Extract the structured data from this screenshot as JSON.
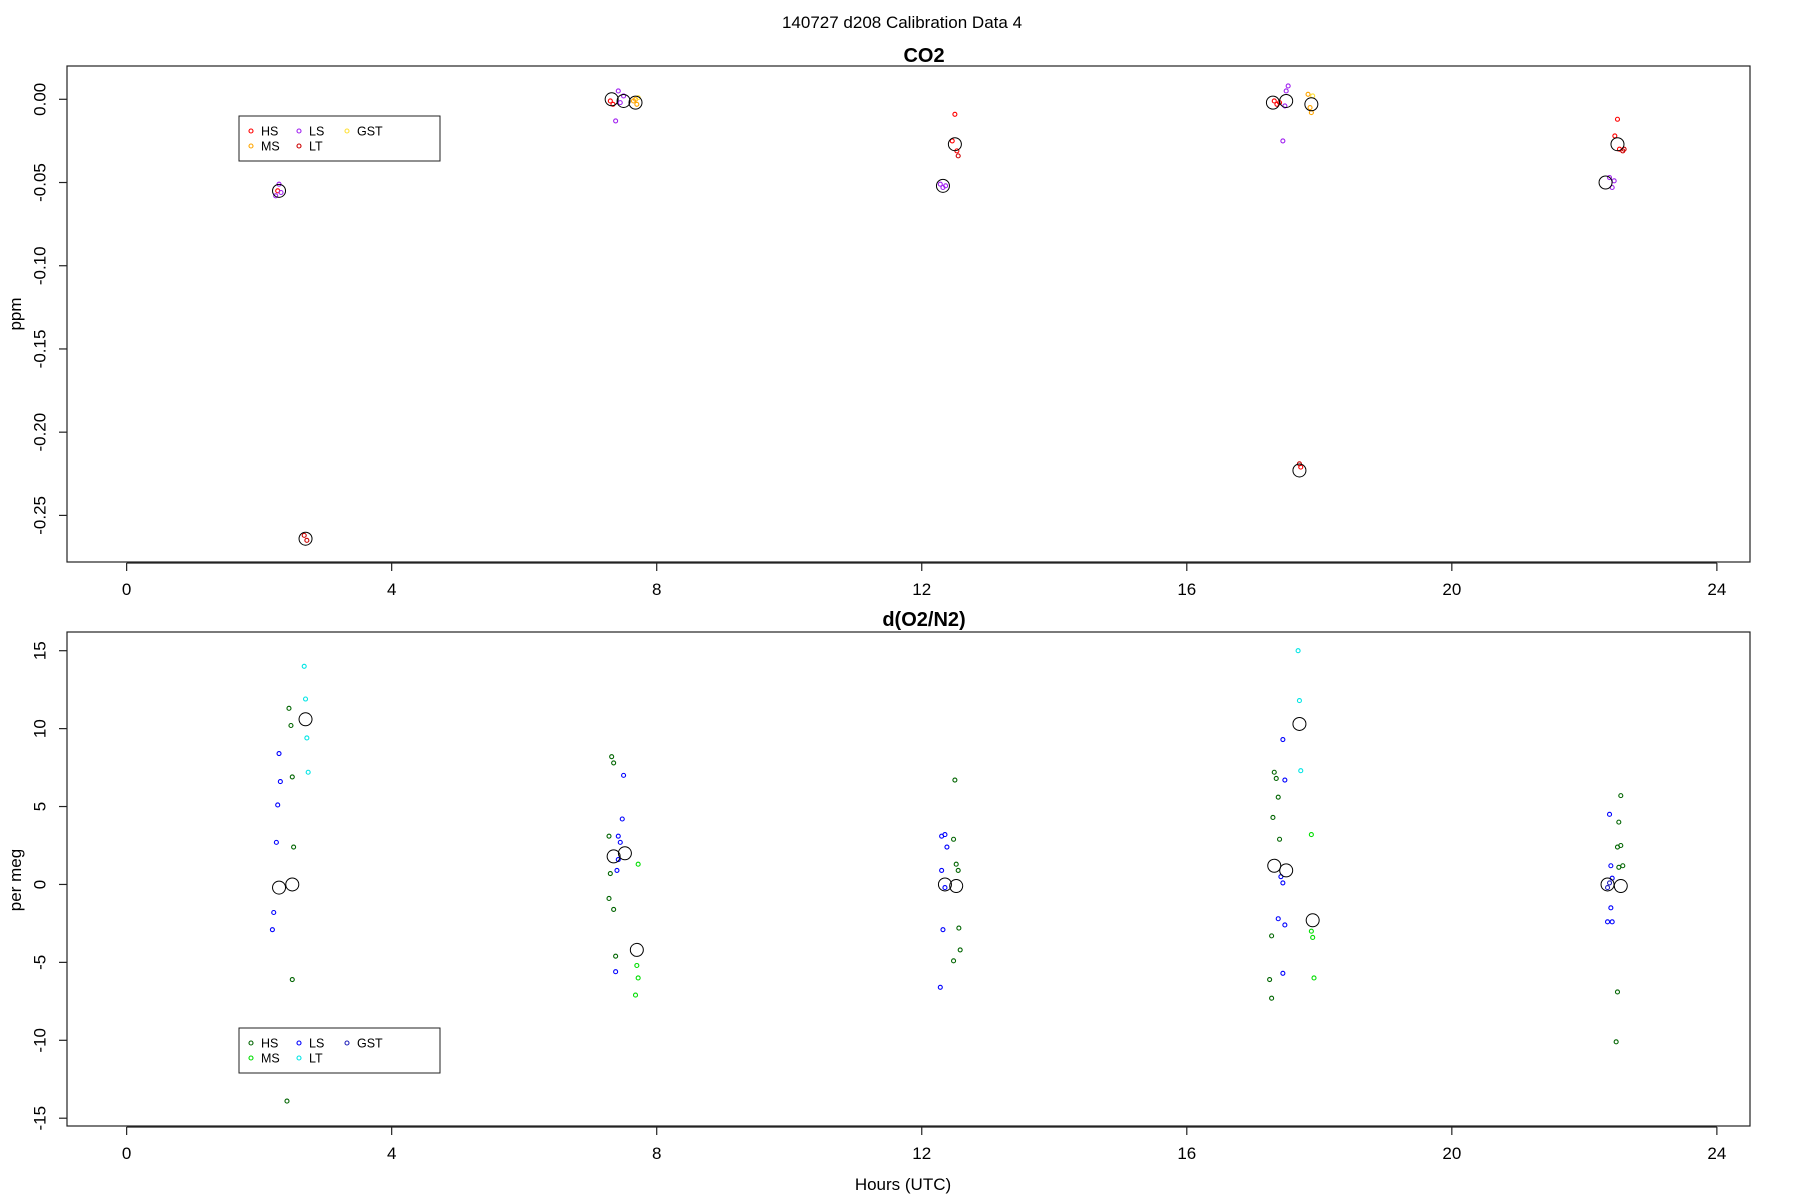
{
  "figure_title": "140727   d208   Calibration Data 4",
  "chart_data": [
    {
      "type": "scatter",
      "title": "CO2",
      "xlabel": "",
      "ylabel": "ppm",
      "xlim": [
        -0.9,
        24.5
      ],
      "ylim": [
        -0.278,
        0.02
      ],
      "x_ticks": [
        0,
        4,
        8,
        12,
        16,
        20,
        24
      ],
      "x_tick_labels": [
        "0",
        "4",
        "8",
        "12",
        "16",
        "20",
        "24"
      ],
      "y_ticks": [
        0.0,
        -0.05,
        -0.1,
        -0.15,
        -0.2,
        -0.25
      ],
      "y_tick_labels": [
        "0.00",
        "-0.05",
        "-0.10",
        "-0.15",
        "-0.20",
        "-0.25"
      ],
      "grid": false,
      "legend": {
        "placement": "top-left",
        "entries": [
          {
            "name": "HS",
            "color": "#ff0000"
          },
          {
            "name": "MS",
            "color": "#ffa500"
          },
          {
            "name": "LS",
            "color": "#a020f0"
          },
          {
            "name": "LT",
            "color": "#cc0000"
          },
          {
            "name": "GST",
            "color": "#ffe135"
          }
        ]
      },
      "series": [
        {
          "name": "HS",
          "color": "#ff0000",
          "points": [
            [
              2.28,
              -0.055
            ],
            [
              7.3,
              -0.001
            ],
            [
              7.34,
              -0.003
            ],
            [
              12.46,
              -0.025
            ],
            [
              12.5,
              -0.009
            ],
            [
              12.53,
              -0.031
            ],
            [
              17.32,
              -0.001
            ],
            [
              17.36,
              -0.003
            ],
            [
              17.4,
              -0.002
            ],
            [
              17.72,
              -0.221
            ],
            [
              22.46,
              -0.022
            ],
            [
              22.5,
              -0.012
            ],
            [
              22.53,
              -0.03
            ]
          ]
        },
        {
          "name": "MS",
          "color": "#ffa500",
          "points": [
            [
              7.65,
              -0.001
            ],
            [
              7.7,
              -0.003
            ],
            [
              7.68,
              0.0
            ],
            [
              17.83,
              0.003
            ],
            [
              17.86,
              -0.005
            ],
            [
              17.88,
              -0.008
            ]
          ]
        },
        {
          "name": "LS",
          "color": "#a020f0",
          "points": [
            [
              2.25,
              -0.058
            ],
            [
              2.3,
              -0.051
            ],
            [
              2.33,
              -0.056
            ],
            [
              7.42,
              0.005
            ],
            [
              7.45,
              -0.002
            ],
            [
              7.38,
              -0.013
            ],
            [
              7.5,
              0.002
            ],
            [
              12.28,
              -0.051
            ],
            [
              12.32,
              -0.053
            ],
            [
              12.36,
              -0.052
            ],
            [
              17.45,
              -0.025
            ],
            [
              17.5,
              0.005
            ],
            [
              17.53,
              0.008
            ],
            [
              17.48,
              -0.004
            ],
            [
              22.38,
              -0.047
            ],
            [
              22.42,
              -0.053
            ],
            [
              22.45,
              -0.049
            ]
          ]
        },
        {
          "name": "LT",
          "color": "#cc0000",
          "points": [
            [
              2.68,
              -0.262
            ],
            [
              2.72,
              -0.265
            ],
            [
              12.55,
              -0.034
            ],
            [
              17.7,
              -0.219
            ],
            [
              22.58,
              -0.031
            ],
            [
              22.6,
              -0.03
            ]
          ]
        },
        {
          "name": "GST",
          "color": "#ffe135",
          "points": [
            [
              7.72,
              0.001
            ],
            [
              17.9,
              0.002
            ]
          ]
        },
        {
          "name": "",
          "color": "#000000",
          "marker": "large-circle",
          "points": [
            [
              2.3,
              -0.055
            ],
            [
              2.7,
              -0.264
            ],
            [
              7.32,
              0.0
            ],
            [
              7.5,
              -0.001
            ],
            [
              7.68,
              -0.002
            ],
            [
              12.32,
              -0.052
            ],
            [
              12.5,
              -0.027
            ],
            [
              17.3,
              -0.002
            ],
            [
              17.5,
              -0.001
            ],
            [
              17.7,
              -0.223
            ],
            [
              17.88,
              -0.003
            ],
            [
              22.32,
              -0.05
            ],
            [
              22.5,
              -0.027
            ]
          ]
        }
      ]
    },
    {
      "type": "scatter",
      "title": "d(O2/N2)",
      "xlabel": "Hours (UTC)",
      "ylabel": "per meg",
      "xlim": [
        -0.9,
        24.5
      ],
      "ylim": [
        -15.5,
        16.2
      ],
      "x_ticks": [
        0,
        4,
        8,
        12,
        16,
        20,
        24
      ],
      "x_tick_labels": [
        "0",
        "4",
        "8",
        "12",
        "16",
        "20",
        "24"
      ],
      "y_ticks": [
        15,
        10,
        5,
        0,
        -5,
        -10,
        -15
      ],
      "y_tick_labels": [
        "15",
        "10",
        "5",
        "0",
        "-5",
        "-10",
        "-15"
      ],
      "grid": false,
      "legend": {
        "placement": "bottom-left",
        "entries": [
          {
            "name": "HS",
            "color": "#006400"
          },
          {
            "name": "MS",
            "color": "#00dd00"
          },
          {
            "name": "LS",
            "color": "#0000ff"
          },
          {
            "name": "LT",
            "color": "#00e5e5"
          },
          {
            "name": "GST",
            "color": "#2222bb"
          }
        ]
      },
      "series": [
        {
          "name": "HS",
          "color": "#006400",
          "points": [
            [
              2.45,
              11.3
            ],
            [
              2.48,
              10.2
            ],
            [
              2.5,
              6.9
            ],
            [
              2.52,
              2.4
            ],
            [
              2.5,
              -6.1
            ],
            [
              2.42,
              -13.9
            ],
            [
              7.32,
              8.2
            ],
            [
              7.35,
              7.8
            ],
            [
              7.28,
              3.1
            ],
            [
              7.3,
              0.7
            ],
            [
              7.28,
              -0.9
            ],
            [
              7.35,
              -1.6
            ],
            [
              7.38,
              -4.6
            ],
            [
              12.5,
              6.7
            ],
            [
              12.48,
              2.9
            ],
            [
              12.52,
              1.3
            ],
            [
              12.55,
              0.9
            ],
            [
              12.56,
              -2.8
            ],
            [
              12.58,
              -4.2
            ],
            [
              12.48,
              -4.9
            ],
            [
              17.32,
              7.2
            ],
            [
              17.35,
              6.8
            ],
            [
              17.38,
              5.6
            ],
            [
              17.3,
              4.3
            ],
            [
              17.4,
              2.9
            ],
            [
              17.28,
              -3.3
            ],
            [
              17.25,
              -6.1
            ],
            [
              17.28,
              -7.3
            ],
            [
              22.55,
              5.7
            ],
            [
              22.52,
              4.0
            ],
            [
              22.55,
              2.5
            ],
            [
              22.5,
              2.4
            ],
            [
              22.58,
              1.2
            ],
            [
              22.52,
              1.1
            ],
            [
              22.5,
              -6.9
            ],
            [
              22.48,
              -10.1
            ]
          ]
        },
        {
          "name": "MS",
          "color": "#00dd00",
          "points": [
            [
              7.72,
              1.3
            ],
            [
              7.7,
              -5.2
            ],
            [
              7.72,
              -6.0
            ],
            [
              7.68,
              -7.1
            ],
            [
              17.88,
              3.2
            ],
            [
              17.9,
              -3.4
            ],
            [
              17.88,
              -3.0
            ],
            [
              17.92,
              -6.0
            ]
          ]
        },
        {
          "name": "LS",
          "color": "#0000ff",
          "points": [
            [
              2.3,
              8.4
            ],
            [
              2.32,
              6.6
            ],
            [
              2.28,
              5.1
            ],
            [
              2.26,
              2.7
            ],
            [
              2.22,
              -1.8
            ],
            [
              2.2,
              -2.9
            ],
            [
              7.5,
              7.0
            ],
            [
              7.48,
              4.2
            ],
            [
              7.45,
              2.7
            ],
            [
              7.42,
              3.1
            ],
            [
              7.4,
              0.9
            ],
            [
              7.42,
              1.6
            ],
            [
              7.38,
              -5.6
            ],
            [
              12.3,
              3.1
            ],
            [
              12.35,
              3.2
            ],
            [
              12.38,
              2.4
            ],
            [
              12.3,
              0.9
            ],
            [
              12.35,
              -0.2
            ],
            [
              12.32,
              -2.9
            ],
            [
              12.28,
              -6.6
            ],
            [
              17.45,
              9.3
            ],
            [
              17.48,
              6.7
            ],
            [
              17.42,
              0.5
            ],
            [
              17.45,
              0.1
            ],
            [
              17.38,
              -2.2
            ],
            [
              17.48,
              -2.6
            ],
            [
              17.45,
              -5.7
            ],
            [
              22.38,
              4.5
            ],
            [
              22.4,
              1.2
            ],
            [
              22.42,
              0.4
            ],
            [
              22.4,
              -1.5
            ],
            [
              22.35,
              -2.4
            ],
            [
              22.42,
              -2.4
            ]
          ]
        },
        {
          "name": "LT",
          "color": "#00e5e5",
          "points": [
            [
              2.68,
              14.0
            ],
            [
              2.7,
              11.9
            ],
            [
              2.72,
              9.4
            ],
            [
              2.74,
              7.2
            ],
            [
              17.68,
              15.0
            ],
            [
              17.7,
              11.8
            ],
            [
              17.72,
              7.3
            ]
          ]
        },
        {
          "name": "GST",
          "color": "#2222bb",
          "points": [
            [
              22.35,
              -0.2
            ],
            [
              22.38,
              0.1
            ]
          ]
        },
        {
          "name": "",
          "color": "#000000",
          "marker": "large-circle",
          "points": [
            [
              2.3,
              -0.2
            ],
            [
              2.5,
              0.0
            ],
            [
              2.7,
              10.6
            ],
            [
              7.35,
              1.8
            ],
            [
              7.52,
              2.0
            ],
            [
              7.7,
              -4.2
            ],
            [
              12.35,
              0.0
            ],
            [
              12.52,
              -0.1
            ],
            [
              17.32,
              1.2
            ],
            [
              17.5,
              0.9
            ],
            [
              17.7,
              10.3
            ],
            [
              17.9,
              -2.3
            ],
            [
              22.35,
              0.0
            ],
            [
              22.55,
              -0.1
            ]
          ]
        }
      ]
    }
  ]
}
